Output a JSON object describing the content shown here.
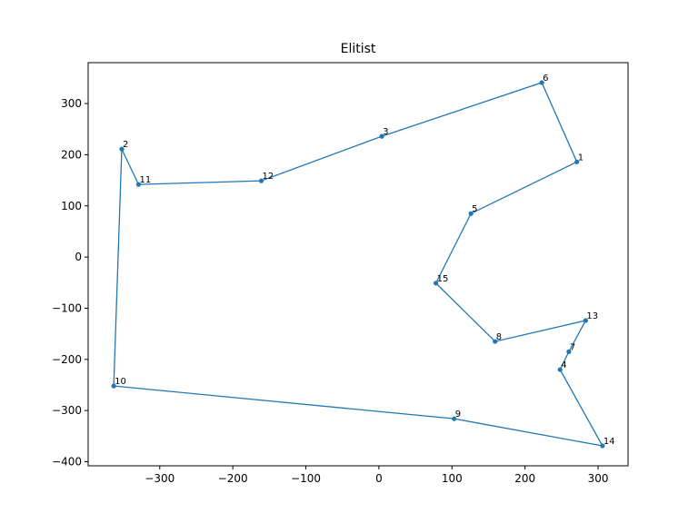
{
  "chart_data": {
    "type": "line",
    "title": "Elitist",
    "labels": [
      "6",
      "1",
      "5",
      "15",
      "8",
      "13",
      "7",
      "4",
      "14",
      "9",
      "10",
      "2",
      "11",
      "12",
      "3"
    ],
    "x": [
      223,
      271,
      126,
      78,
      159,
      283,
      260,
      248,
      306,
      103,
      -363,
      -352,
      -329,
      -161,
      4
    ],
    "series": [
      {
        "color": "#1f77b4",
        "values": [
          341,
          186,
          85,
          -51,
          -165,
          -124,
          -185,
          -220,
          -369,
          -316,
          -252,
          211,
          142,
          149,
          236
        ]
      }
    ],
    "closed": true,
    "xlim": [
      -398,
      341
    ],
    "ylim": [
      -408,
      380
    ],
    "xticks": [
      {
        "value": -300,
        "label": "−300"
      },
      {
        "value": -200,
        "label": "−200"
      },
      {
        "value": -100,
        "label": "−100"
      },
      0,
      100,
      200,
      300
    ],
    "yticks": [
      {
        "value": -400,
        "label": "−400"
      },
      {
        "value": -300,
        "label": "−300"
      },
      {
        "value": -200,
        "label": "−200"
      },
      {
        "value": -100,
        "label": "−100"
      },
      0,
      100,
      200,
      300
    ]
  }
}
